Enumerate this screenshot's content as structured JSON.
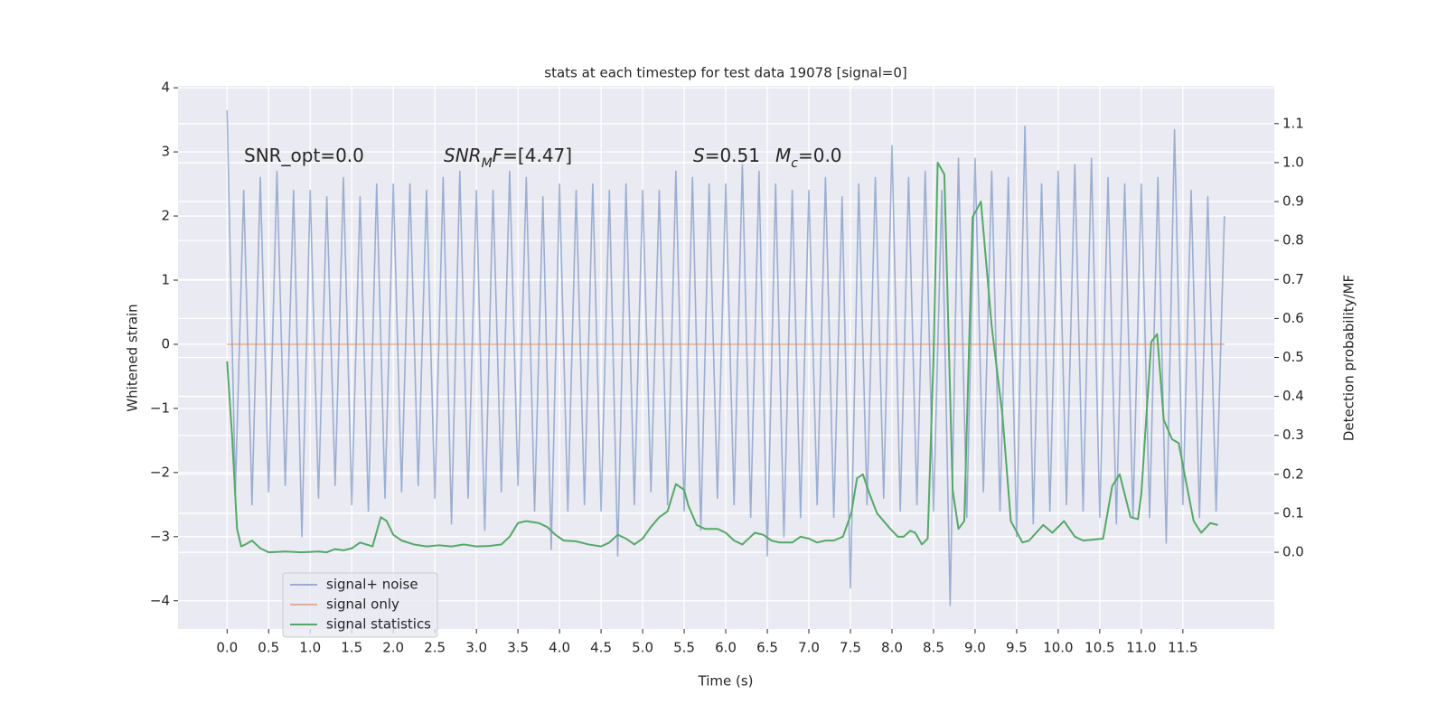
{
  "chart_data": {
    "type": "line",
    "title": "stats at each timestep for test data 19078 [signal=0]",
    "x_label": "Time (s)",
    "y_label": "Whitened strain",
    "y2_label": "Detection probability/MF",
    "xlim": [
      -0.59,
      12.6
    ],
    "ylim": [
      -4.44,
      4.03
    ],
    "y2lim": [
      -0.197,
      1.197
    ],
    "grid": true,
    "legend": "lower left",
    "xticks": [
      {
        "value": 0,
        "label": "0.0"
      },
      {
        "value": 0.5,
        "label": "0.5"
      },
      {
        "value": 1,
        "label": "1.0"
      },
      {
        "value": 1.5,
        "label": "1.5"
      },
      {
        "value": 2,
        "label": "2.0"
      },
      {
        "value": 2.5,
        "label": "2.5"
      },
      {
        "value": 3,
        "label": "3.0"
      },
      {
        "value": 3.5,
        "label": "3.5"
      },
      {
        "value": 4,
        "label": "4.0"
      },
      {
        "value": 4.5,
        "label": "4.5"
      },
      {
        "value": 5,
        "label": "5.0"
      },
      {
        "value": 5.5,
        "label": "5.5"
      },
      {
        "value": 6,
        "label": "6.0"
      },
      {
        "value": 6.5,
        "label": "6.5"
      },
      {
        "value": 7,
        "label": "7.0"
      },
      {
        "value": 7.5,
        "label": "7.5"
      },
      {
        "value": 8,
        "label": "8.0"
      },
      {
        "value": 8.5,
        "label": "8.5"
      },
      {
        "value": 9,
        "label": "9.0"
      },
      {
        "value": 9.5,
        "label": "9.5"
      },
      {
        "value": 10,
        "label": "10.0"
      },
      {
        "value": 10.5,
        "label": "10.5"
      },
      {
        "value": 11,
        "label": "11.0"
      },
      {
        "value": 11.5,
        "label": "11.5"
      }
    ],
    "yticks": [
      {
        "value": -4,
        "label": "−4"
      },
      {
        "value": -3,
        "label": "−3"
      },
      {
        "value": -2,
        "label": "−2"
      },
      {
        "value": -1,
        "label": "−1"
      },
      0,
      1,
      2,
      3,
      4
    ],
    "y2ticks": [
      {
        "value": 0,
        "label": "0.0"
      },
      {
        "value": 0.1,
        "label": "0.1"
      },
      {
        "value": 0.2,
        "label": "0.2"
      },
      {
        "value": 0.3,
        "label": "0.3"
      },
      {
        "value": 0.4,
        "label": "0.4"
      },
      {
        "value": 0.5,
        "label": "0.5"
      },
      {
        "value": 0.6,
        "label": "0.6"
      },
      {
        "value": 0.7,
        "label": "0.7"
      },
      {
        "value": 0.8,
        "label": "0.8"
      },
      {
        "value": 0.9,
        "label": "0.9"
      },
      {
        "value": 1,
        "label": "1.0"
      },
      {
        "value": 1.1,
        "label": "1.1"
      }
    ],
    "annotations": [
      {
        "parts": [
          {
            "text": "SNR_opt=0.0"
          }
        ]
      },
      {
        "parts": [
          {
            "text": "SNR",
            "italic": true
          },
          {
            "text": "M",
            "italic": true,
            "sub": true
          },
          {
            "text": "F",
            "italic": true
          },
          {
            "text": "=[4.47]"
          }
        ]
      },
      {
        "parts": [
          {
            "text": "S",
            "italic": true
          },
          {
            "text": "=0.51"
          }
        ]
      },
      {
        "parts": [
          {
            "text": "M",
            "italic": true
          },
          {
            "text": "c",
            "italic": true,
            "sub": true
          },
          {
            "text": "=0.0"
          }
        ]
      }
    ],
    "series": [
      {
        "name": "signal+ noise",
        "color": "#4c72b0",
        "opacity": 0.5,
        "x": [
          0,
          0.1,
          0.2,
          0.3,
          0.4,
          0.5,
          0.6,
          0.7,
          0.8,
          0.9,
          1,
          1.1,
          1.2,
          1.3,
          1.4,
          1.5,
          1.6,
          1.7,
          1.8,
          1.9,
          2,
          2.1,
          2.2,
          2.3,
          2.4,
          2.5,
          2.6,
          2.7,
          2.8,
          2.9,
          3,
          3.1,
          3.2,
          3.3,
          3.4,
          3.5,
          3.6,
          3.7,
          3.8,
          3.9,
          4,
          4.1,
          4.2,
          4.3,
          4.4,
          4.5,
          4.6,
          4.7,
          4.8,
          4.9,
          5,
          5.1,
          5.2,
          5.3,
          5.4,
          5.5,
          5.6,
          5.7,
          5.8,
          5.9,
          6,
          6.1,
          6.2,
          6.3,
          6.4,
          6.5,
          6.6,
          6.7,
          6.8,
          6.9,
          7,
          7.1,
          7.2,
          7.3,
          7.4,
          7.5,
          7.6,
          7.7,
          7.8,
          7.9,
          8,
          8.1,
          8.2,
          8.3,
          8.4,
          8.5,
          8.6,
          8.7,
          8.8,
          8.9,
          9,
          9.1,
          9.2,
          9.3,
          9.4,
          9.5,
          9.6,
          9.7,
          9.8,
          9.9,
          10,
          10.1,
          10.2,
          10.3,
          10.4,
          10.5,
          10.6,
          10.7,
          10.8,
          10.9,
          11,
          11.1,
          11.2,
          11.3,
          11.4,
          11.5,
          11.6,
          11.7,
          11.8,
          11.9,
          12
        ],
        "values": [
          3.65,
          -2.3,
          2.4,
          -2.5,
          2.6,
          -2.3,
          2.7,
          -2.2,
          2.4,
          -3.0,
          2.4,
          -2.4,
          2.3,
          -2.2,
          2.6,
          -2.5,
          2.3,
          -2.6,
          2.5,
          -2.4,
          2.5,
          -2.3,
          2.5,
          -2.2,
          2.4,
          -2.4,
          2.6,
          -2.8,
          2.7,
          -2.4,
          2.4,
          -2.9,
          2.4,
          -2.3,
          2.7,
          -2.2,
          2.6,
          -2.6,
          2.3,
          -3.2,
          2.5,
          -2.6,
          2.4,
          -2.5,
          2.5,
          -2.6,
          2.4,
          -3.3,
          2.5,
          -2.5,
          2.4,
          -2.3,
          2.4,
          -2.5,
          2.7,
          -2.6,
          2.6,
          -2.9,
          2.5,
          -2.4,
          2.5,
          -2.5,
          2.8,
          -2.7,
          2.7,
          -3.3,
          2.5,
          -3.0,
          2.4,
          -2.7,
          2.4,
          -2.5,
          2.6,
          -2.7,
          2.3,
          -3.8,
          2.5,
          -2.5,
          2.6,
          -2.4,
          3.1,
          -2.6,
          2.6,
          -2.5,
          2.7,
          -2.6,
          2.4,
          -4.07,
          2.9,
          -2.7,
          2.9,
          -2.3,
          2.7,
          -2.6,
          2.6,
          -3.0,
          3.4,
          -2.8,
          2.5,
          -2.6,
          2.7,
          -2.5,
          2.8,
          -2.6,
          2.9,
          -2.7,
          2.6,
          -2.8,
          2.5,
          -2.7,
          2.5,
          -2.7,
          2.6,
          -3.1,
          3.35,
          -2.5,
          2.4,
          -2.7,
          2.3,
          -2.6,
          2.0
        ]
      },
      {
        "name": "signal only",
        "color": "#dd8452",
        "opacity": 0.6,
        "x": [
          0,
          12
        ],
        "values": [
          0,
          0
        ]
      },
      {
        "name": "signal statistics",
        "color": "#55a868",
        "opacity": 1,
        "axis": "y2",
        "x": [
          0,
          0.06,
          0.12,
          0.17,
          0.22,
          0.3,
          0.4,
          0.5,
          0.7,
          0.9,
          1.1,
          1.2,
          1.3,
          1.4,
          1.5,
          1.6,
          1.75,
          1.85,
          1.92,
          2.0,
          2.1,
          2.25,
          2.4,
          2.55,
          2.7,
          2.85,
          3.0,
          3.15,
          3.3,
          3.4,
          3.5,
          3.6,
          3.75,
          3.85,
          3.95,
          4.05,
          4.2,
          4.35,
          4.5,
          4.6,
          4.7,
          4.8,
          4.9,
          5.0,
          5.1,
          5.2,
          5.3,
          5.4,
          5.5,
          5.55,
          5.65,
          5.75,
          5.9,
          6.0,
          6.1,
          6.2,
          6.3,
          6.35,
          6.45,
          6.55,
          6.65,
          6.8,
          6.9,
          7.0,
          7.1,
          7.2,
          7.3,
          7.41,
          7.51,
          7.58,
          7.65,
          7.73,
          7.82,
          7.98,
          8.07,
          8.14,
          8.22,
          8.28,
          8.36,
          8.43,
          8.5,
          8.55,
          8.63,
          8.73,
          8.8,
          8.87,
          8.97,
          9.07,
          9.2,
          9.33,
          9.43,
          9.57,
          9.65,
          9.82,
          9.93,
          10.07,
          10.2,
          10.3,
          10.54,
          10.65,
          10.74,
          10.87,
          10.96,
          11.0,
          11.12,
          11.19,
          11.27,
          11.37,
          11.45,
          11.53,
          11.63,
          11.72,
          11.83,
          11.92
        ],
        "values": [
          0.49,
          0.3,
          0.06,
          0.015,
          0.02,
          0.03,
          0.01,
          0.0,
          0.002,
          0.0,
          0.002,
          0.0,
          0.008,
          0.005,
          0.01,
          0.025,
          0.015,
          0.09,
          0.08,
          0.045,
          0.03,
          0.02,
          0.015,
          0.018,
          0.015,
          0.02,
          0.015,
          0.016,
          0.02,
          0.04,
          0.075,
          0.08,
          0.075,
          0.065,
          0.045,
          0.03,
          0.028,
          0.02,
          0.015,
          0.025,
          0.045,
          0.035,
          0.02,
          0.035,
          0.065,
          0.09,
          0.105,
          0.175,
          0.16,
          0.12,
          0.07,
          0.06,
          0.06,
          0.05,
          0.03,
          0.02,
          0.04,
          0.05,
          0.045,
          0.03,
          0.025,
          0.025,
          0.04,
          0.035,
          0.025,
          0.03,
          0.03,
          0.04,
          0.1,
          0.19,
          0.2,
          0.15,
          0.1,
          0.06,
          0.04,
          0.04,
          0.055,
          0.05,
          0.02,
          0.035,
          0.5,
          1.0,
          0.97,
          0.16,
          0.06,
          0.08,
          0.86,
          0.9,
          0.58,
          0.35,
          0.08,
          0.025,
          0.03,
          0.07,
          0.05,
          0.08,
          0.04,
          0.03,
          0.035,
          0.17,
          0.2,
          0.09,
          0.085,
          0.15,
          0.54,
          0.56,
          0.34,
          0.29,
          0.28,
          0.19,
          0.08,
          0.05,
          0.075,
          0.07
        ]
      }
    ]
  }
}
